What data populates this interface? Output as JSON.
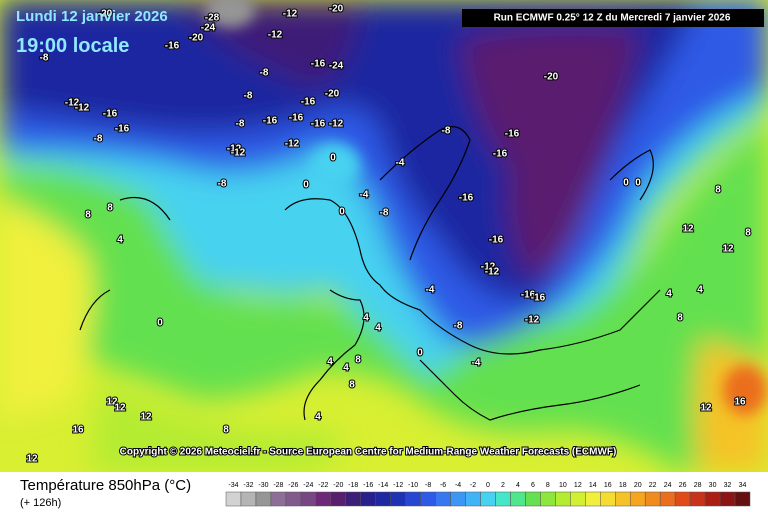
{
  "header": {
    "date": "Lundi 12 janvier 2026",
    "time": "19:00 locale",
    "run": "Run ECMWF 0.25° 12 Z du Mercredi 7 janvier 2026"
  },
  "copyright": "Copyright © 2026 Meteociel.fr - Source European Centre for Medium-Range Weather Forecasts (ECMWF)",
  "legend": {
    "title": "Température 850hPa (°C)",
    "lead": "(+ 126h)",
    "values": [
      -34,
      -32,
      -30,
      -28,
      -26,
      -24,
      -22,
      -20,
      -18,
      -16,
      -14,
      -12,
      -10,
      -8,
      -6,
      -4,
      -2,
      0,
      2,
      4,
      6,
      8,
      10,
      12,
      14,
      16,
      18,
      20,
      22,
      24,
      26,
      28,
      30,
      32,
      34
    ],
    "colors": [
      "#d2d2d2",
      "#b4b4b4",
      "#969696",
      "#8c6e96",
      "#825a8c",
      "#784682",
      "#6e2878",
      "#5a1e6e",
      "#3c1e78",
      "#28208c",
      "#1e28a0",
      "#1e32b4",
      "#2846d2",
      "#2d5ae6",
      "#3778f0",
      "#3c96f5",
      "#41b4f5",
      "#46d2f0",
      "#46e6c8",
      "#50e68c",
      "#64e050",
      "#8ce63c",
      "#b4ec32",
      "#d2f032",
      "#f0f03c",
      "#f5dc32",
      "#f5c328",
      "#f5a51e",
      "#f08c1e",
      "#eb6e1e",
      "#e14b19",
      "#c83219",
      "#aa1e14",
      "#8c1414",
      "#641010"
    ]
  },
  "map_labels": [
    -20,
    -28,
    -24,
    -20,
    -12,
    -20,
    -16,
    -12,
    -8,
    -16,
    -24,
    -8,
    -20,
    -12,
    -12,
    -8,
    -16,
    -20,
    -16,
    -16,
    -8,
    -16,
    -16,
    -16,
    -12,
    -8,
    -12,
    -12,
    -12,
    -8,
    -16,
    -16,
    -4,
    0,
    0,
    -8,
    -16,
    -4,
    0,
    -8,
    8,
    8,
    4,
    -16,
    12,
    12,
    -12,
    -12,
    0,
    0,
    8,
    8,
    4,
    -16,
    -16,
    -4,
    -12,
    0,
    -8,
    4,
    4,
    4,
    8,
    -4,
    0,
    4,
    8,
    4,
    8,
    4,
    12,
    12,
    12,
    12,
    16,
    8,
    12,
    16
  ]
}
